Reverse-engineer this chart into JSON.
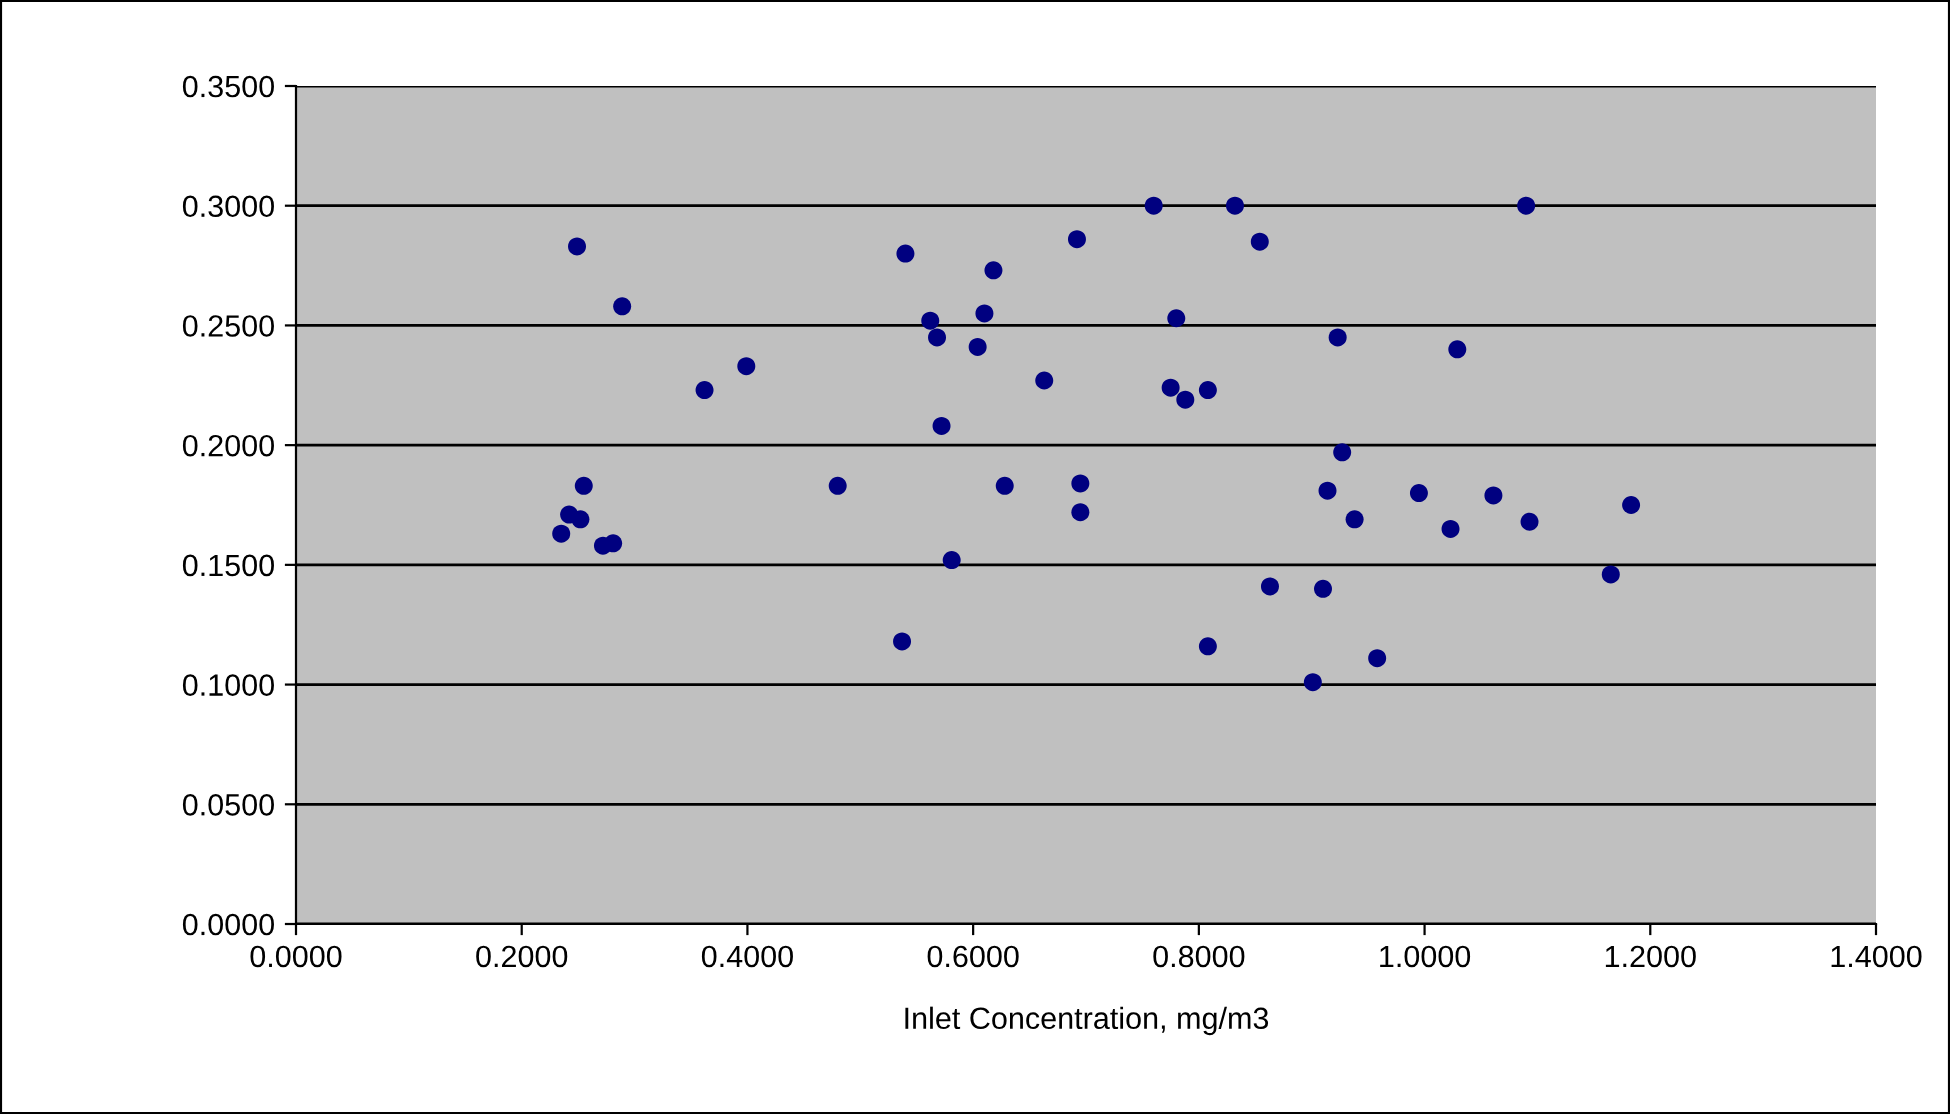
{
  "chart_data": {
    "type": "scatter",
    "xlabel": "Inlet Concentration, mg/m3",
    "xlim": [
      0,
      1.4
    ],
    "xticks": [
      {
        "value": 0,
        "label": "0.0000"
      },
      {
        "value": 0.2,
        "label": "0.2000"
      },
      {
        "value": 0.4,
        "label": "0.4000"
      },
      {
        "value": 0.6,
        "label": "0.6000"
      },
      {
        "value": 0.8,
        "label": "0.8000"
      },
      {
        "value": 1.0,
        "label": "1.0000"
      },
      {
        "value": 1.2,
        "label": "1.2000"
      },
      {
        "value": 1.4,
        "label": "1.4000"
      }
    ],
    "ylim": [
      0,
      0.35
    ],
    "yticks": [
      {
        "value": 0,
        "label": "0.0000"
      },
      {
        "value": 0.05,
        "label": "0.0500"
      },
      {
        "value": 0.1,
        "label": "0.1000"
      },
      {
        "value": 0.15,
        "label": "0.1500"
      },
      {
        "value": 0.2,
        "label": "0.2000"
      },
      {
        "value": 0.25,
        "label": "0.2500"
      },
      {
        "value": 0.3,
        "label": "0.3000"
      },
      {
        "value": 0.35,
        "label": "0.3500"
      }
    ],
    "grid": "y",
    "marker": "circle",
    "series": [
      {
        "color": "#000080",
        "x": [
          0.249,
          0.289,
          0.362,
          0.399,
          0.255,
          0.242,
          0.252,
          0.235,
          0.272,
          0.281,
          0.48,
          0.76,
          0.832,
          0.692,
          0.54,
          0.854,
          0.618,
          0.562,
          0.61,
          0.568,
          0.604,
          0.78,
          0.923,
          0.663,
          0.775,
          0.788,
          0.808,
          0.572,
          0.927,
          0.628,
          0.695,
          0.695,
          0.914,
          0.938,
          0.581,
          0.863,
          0.91,
          0.537,
          0.808,
          0.958,
          0.901,
          1.09,
          1.029,
          0.995,
          1.023,
          1.061,
          1.093,
          1.183,
          1.165
        ],
        "values": [
          0.283,
          0.258,
          0.223,
          0.233,
          0.183,
          0.171,
          0.169,
          0.163,
          0.158,
          0.159,
          0.183,
          0.3,
          0.3,
          0.286,
          0.28,
          0.285,
          0.273,
          0.252,
          0.255,
          0.245,
          0.241,
          0.253,
          0.245,
          0.227,
          0.224,
          0.219,
          0.223,
          0.208,
          0.197,
          0.183,
          0.184,
          0.172,
          0.181,
          0.169,
          0.152,
          0.141,
          0.14,
          0.118,
          0.116,
          0.111,
          0.101,
          0.3,
          0.24,
          0.18,
          0.165,
          0.179,
          0.168,
          0.175,
          0.146
        ]
      }
    ]
  }
}
